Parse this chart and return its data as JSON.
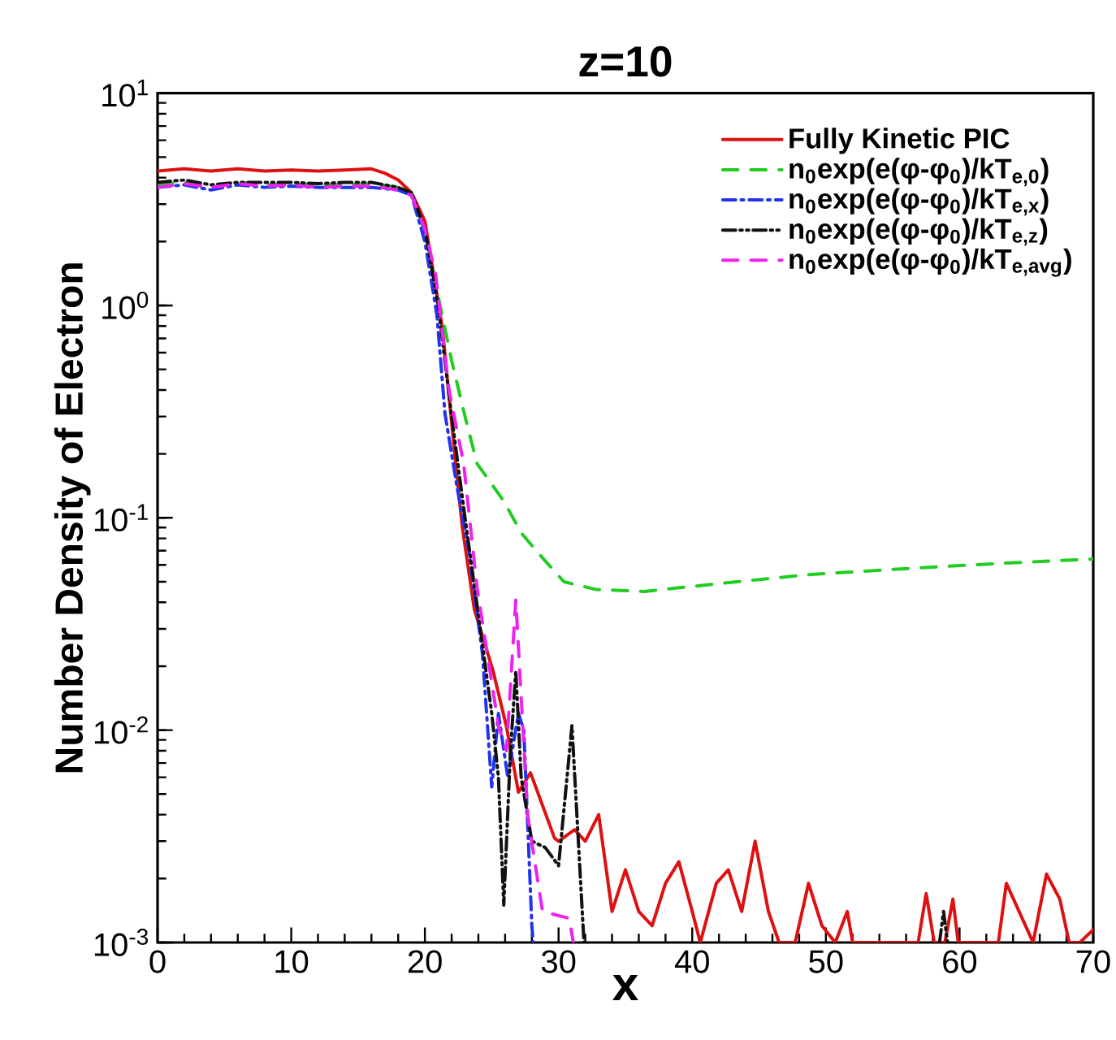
{
  "chart_data": {
    "type": "line",
    "title": "z=10",
    "xlabel": "x",
    "ylabel": "Number Density of Electron",
    "xlim": [
      0,
      70
    ],
    "xticks": [
      0,
      10,
      20,
      30,
      40,
      50,
      60,
      70
    ],
    "ylim": [
      0.001,
      10
    ],
    "yticks": [
      {
        "value": 0.001,
        "label": "10$^{-3}$"
      },
      {
        "value": 0.01,
        "label": "10$^{-2}$"
      },
      {
        "value": 0.1,
        "label": "10$^{-1}$"
      },
      {
        "value": 1,
        "label": "10$^{0}$"
      },
      {
        "value": 10,
        "label": "10$^{1}$"
      }
    ],
    "log": "y",
    "grid": false,
    "legend": "top right",
    "marker": "none",
    "series": [
      {
        "name": "Fully Kinetic PIC",
        "color": "#dd1111",
        "line_style": "solid",
        "x": [
          0,
          2,
          4,
          6,
          8,
          10,
          12,
          14,
          16,
          17,
          18,
          19,
          20,
          21.3,
          22.3,
          22.8,
          23.7,
          25.1,
          26.1,
          27.0,
          27.9,
          29.7,
          30,
          31.2,
          32,
          33,
          34,
          35,
          36,
          37,
          38,
          39,
          40,
          40.6,
          41.8,
          42.7,
          43.7,
          44.7,
          45.7,
          46.5,
          47.7,
          48.7,
          49.7,
          50.7,
          51.6,
          52,
          56.9,
          57.5,
          58.1,
          58.9,
          59.5,
          59.9,
          62.9,
          63.5,
          65.5,
          66.5,
          67.5,
          68.2,
          69,
          70
        ],
        "values": [
          4.3,
          4.4,
          4.3,
          4.4,
          4.3,
          4.35,
          4.3,
          4.35,
          4.4,
          4.2,
          3.9,
          3.4,
          2.5,
          0.79,
          0.18,
          0.09,
          0.037,
          0.019,
          0.0104,
          0.0051,
          0.0063,
          0.0031,
          0.003,
          0.0034,
          0.003,
          0.004,
          0.0014,
          0.0022,
          0.0014,
          0.0012,
          0.0019,
          0.0024,
          0.0014,
          0.001,
          0.0019,
          0.0022,
          0.0014,
          0.003,
          0.0014,
          0.001,
          0.001,
          0.0019,
          0.0012,
          0.001,
          0.0014,
          0.001,
          0.001,
          0.0017,
          0.001,
          0.001,
          0.0016,
          0.001,
          0.001,
          0.0019,
          0.001,
          0.0021,
          0.0016,
          0.001,
          0.001,
          0.00115
        ]
      },
      {
        "name": "n$_{0}$exp(e(φ-φ$_{0}$)/kT$_{e,0}$)",
        "color": "#22cc22",
        "line_style": "dashed",
        "x": [
          0,
          2,
          4,
          6,
          8,
          10,
          12,
          14,
          16,
          18,
          19,
          20.2,
          21,
          22,
          23,
          23.9,
          25.9,
          27.2,
          28.5,
          30.4,
          32.8,
          36.4,
          42,
          48.7,
          56.7,
          63,
          70
        ],
        "values": [
          3.7,
          3.8,
          3.6,
          3.8,
          3.7,
          3.75,
          3.7,
          3.7,
          3.75,
          3.6,
          3.4,
          2.0,
          1.1,
          0.55,
          0.3,
          0.18,
          0.12,
          0.085,
          0.068,
          0.05,
          0.046,
          0.045,
          0.049,
          0.054,
          0.058,
          0.061,
          0.064
        ]
      },
      {
        "name": "n$_{0}$exp(e(φ-φ$_{0}$)/kT$_{e,x}$)",
        "color": "#2233ee",
        "line_style": "dashdot",
        "x": [
          0,
          2,
          4,
          6,
          8,
          10,
          12,
          14,
          16,
          18,
          19,
          20,
          20.9,
          21.5,
          22.4,
          23.3,
          24.3,
          25.0,
          25.5,
          26.2,
          27.0,
          27.4,
          28,
          28.1
        ],
        "values": [
          3.6,
          3.7,
          3.5,
          3.7,
          3.6,
          3.65,
          3.6,
          3.6,
          3.6,
          3.5,
          3.3,
          2.0,
          0.9,
          0.31,
          0.14,
          0.069,
          0.023,
          0.0054,
          0.012,
          0.006,
          0.012,
          0.01,
          0.0012,
          0.001
        ]
      },
      {
        "name": "n$_{0}$exp(e(φ-φ$_{0}$)/kT$_{e,z}$)",
        "color": "#111111",
        "line_style": "dashdotdot",
        "x": [
          0,
          2,
          4,
          6,
          8,
          10,
          12,
          14,
          16,
          18,
          19,
          20,
          21,
          22,
          23,
          24,
          25,
          25.5,
          25.9,
          26.4,
          26.8,
          27.2,
          28,
          29,
          30,
          31,
          31.9,
          45,
          58.5,
          58.8,
          59.1
        ],
        "values": [
          3.8,
          3.9,
          3.7,
          3.8,
          3.8,
          3.8,
          3.75,
          3.8,
          3.8,
          3.6,
          3.4,
          2.3,
          1.0,
          0.3,
          0.1,
          0.035,
          0.012,
          0.006,
          0.0015,
          0.008,
          0.019,
          0.006,
          0.003,
          0.0028,
          0.0023,
          0.0105,
          0.001,
          null,
          0.001,
          0.0014,
          0.001
        ]
      },
      {
        "name": "n$_{0}$exp(e(φ-φ$_{0}$)/kT$_{e,avg}$)",
        "color": "#ee22ee",
        "line_style": "dashed",
        "x": [
          0,
          2,
          4,
          6,
          8,
          10,
          12,
          14,
          16,
          18,
          19,
          20,
          20.8,
          21.8,
          22.9,
          23.9,
          25.5,
          26.1,
          26.8,
          27.7,
          28.8,
          30.8,
          31.1
        ],
        "values": [
          3.6,
          3.75,
          3.6,
          3.75,
          3.65,
          3.7,
          3.6,
          3.65,
          3.65,
          3.5,
          3.3,
          2.3,
          1.4,
          0.4,
          0.18,
          0.047,
          0.0105,
          0.008,
          0.041,
          0.0039,
          0.0014,
          0.0013,
          0.001
        ]
      }
    ]
  }
}
